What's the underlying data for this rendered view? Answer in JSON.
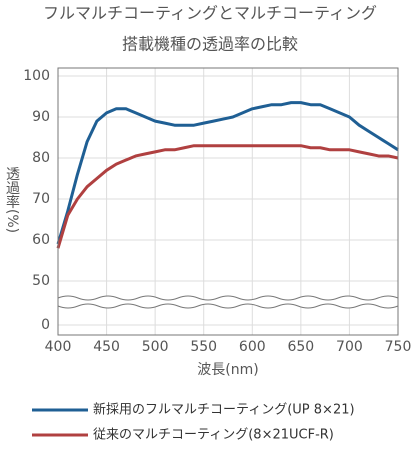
{
  "chart_data": {
    "type": "line",
    "title": "フルマルチコーティングとマルチコーティング",
    "subtitle": "搭載機種の透過率の比較",
    "x_label": "波長(nm)",
    "y_label": "透過率(%)",
    "x": [
      400,
      410,
      420,
      430,
      440,
      450,
      460,
      470,
      480,
      490,
      500,
      510,
      520,
      530,
      540,
      550,
      560,
      570,
      580,
      590,
      600,
      610,
      620,
      630,
      640,
      650,
      660,
      670,
      680,
      690,
      700,
      710,
      720,
      730,
      740,
      750
    ],
    "series": [
      {
        "name": "新採用のフルマルチコーティング(UP 8×21)",
        "color": "#1f5f94",
        "values": [
          59,
          67,
          76,
          84,
          89,
          91,
          92,
          92,
          91,
          90,
          89,
          88.5,
          88,
          88,
          88,
          88.5,
          89,
          89.5,
          90,
          91,
          92,
          92.5,
          93,
          93,
          93.5,
          93.5,
          93,
          93,
          92,
          91,
          90,
          88,
          86.5,
          85,
          83.5,
          82
        ]
      },
      {
        "name": "従来のマルチコーティング(8×21UCF-R)",
        "color": "#b04040",
        "values": [
          58,
          66,
          70,
          73,
          75,
          77,
          78.5,
          79.5,
          80.5,
          81,
          81.5,
          82,
          82,
          82.5,
          83,
          83,
          83,
          83,
          83,
          83,
          83,
          83,
          83,
          83,
          83,
          83,
          82.5,
          82.5,
          82,
          82,
          82,
          81.5,
          81,
          80.5,
          80.5,
          80
        ]
      }
    ],
    "xlim": [
      400,
      750
    ],
    "xticks": [
      400,
      450,
      500,
      550,
      600,
      650,
      700,
      750
    ],
    "ylim": [
      0,
      100
    ],
    "y_break": [
      0,
      45
    ],
    "yticks": [
      0,
      50,
      60,
      70,
      80,
      90,
      100
    ],
    "grid": true
  }
}
